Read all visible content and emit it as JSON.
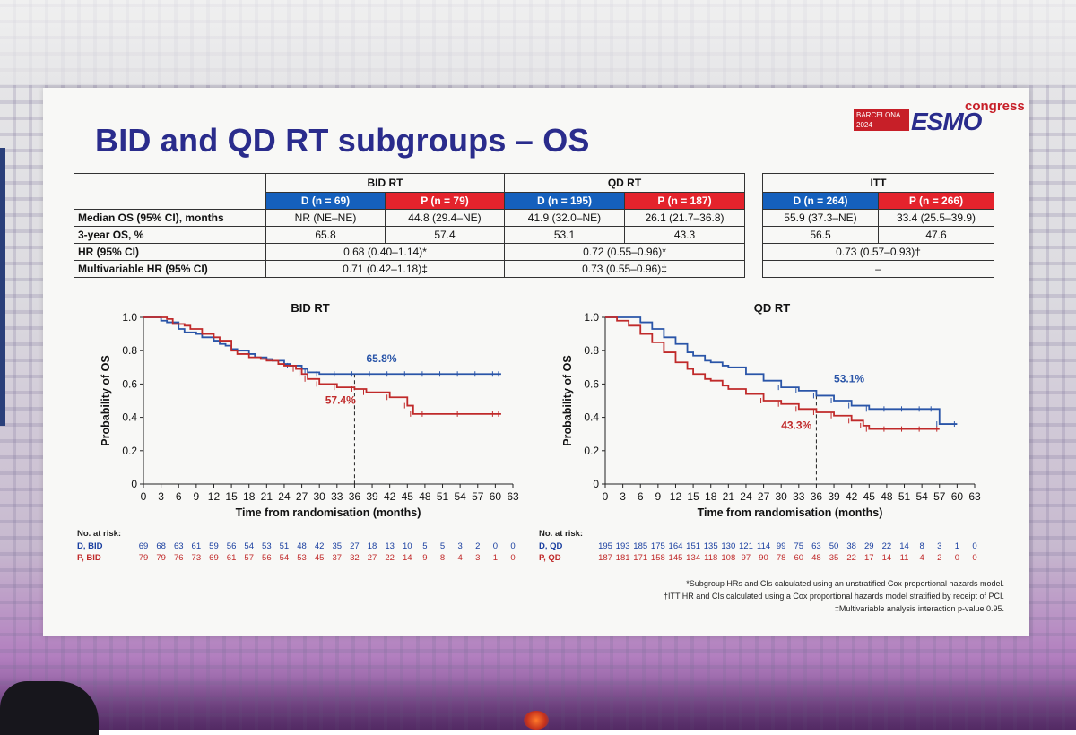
{
  "slide": {
    "title": "BID and QD RT subgroups – OS",
    "logo": {
      "city": "BARCELONA",
      "year": "2024",
      "brand": "ESMO",
      "suffix": "congress"
    }
  },
  "table_main": {
    "groups": [
      "BID RT",
      "QD RT"
    ],
    "arms": [
      "D (n = 69)",
      "P (n = 79)",
      "D (n = 195)",
      "P (n = 187)"
    ],
    "rows": [
      {
        "label": "Median OS (95% CI), months",
        "cells": [
          "NR (NE–NE)",
          "44.8 (29.4–NE)",
          "41.9 (32.0–NE)",
          "26.1 (21.7–36.8)"
        ]
      },
      {
        "label": "3-year OS, %",
        "cells": [
          "65.8",
          "57.4",
          "53.1",
          "43.3"
        ]
      }
    ],
    "hr_rows": [
      {
        "label": "HR (95% CI)",
        "cells": [
          "0.68 (0.40–1.14)*",
          "0.72 (0.55–0.96)*"
        ]
      },
      {
        "label": "Multivariable HR (95% CI)",
        "cells": [
          "0.71 (0.42–1.18)‡",
          "0.73 (0.55–0.96)‡"
        ]
      }
    ]
  },
  "table_itt": {
    "title": "ITT",
    "arms": [
      "D (n = 264)",
      "P (n = 266)"
    ],
    "rows": [
      {
        "cells": [
          "55.9 (37.3–NE)",
          "33.4 (25.5–39.9)"
        ]
      },
      {
        "cells": [
          "56.5",
          "47.6"
        ]
      }
    ],
    "hr_rows": [
      {
        "cell": "0.73 (0.57–0.93)†"
      },
      {
        "cell": "–"
      }
    ]
  },
  "chart_data": [
    {
      "type": "line",
      "title": "BID RT",
      "xlabel": "Time from randomisation (months)",
      "ylabel": "Probability of OS",
      "xlim": [
        0,
        63
      ],
      "ylim": [
        0,
        1.0
      ],
      "x_ticks": [
        0,
        3,
        6,
        9,
        12,
        15,
        18,
        21,
        24,
        27,
        30,
        33,
        36,
        39,
        42,
        45,
        48,
        51,
        54,
        57,
        60,
        63
      ],
      "y_ticks": [
        0,
        0.2,
        0.4,
        0.6,
        0.8,
        1.0
      ],
      "y_tick_labels": [
        "0",
        "0.2",
        "0.4",
        "0.6",
        "0.8",
        "1.0"
      ],
      "reference_x": 36,
      "annotations": [
        {
          "text": "65.8%",
          "series": "D, BID",
          "x": 38,
          "y": 0.73
        },
        {
          "text": "57.4%",
          "series": "P, BID",
          "x": 31,
          "y": 0.48
        }
      ],
      "series": [
        {
          "name": "D, BID",
          "color": "#2a55a8",
          "x": [
            0,
            1,
            3,
            4,
            6,
            7,
            9,
            10,
            12,
            13,
            14,
            15,
            16,
            18,
            19,
            21,
            22,
            24,
            25,
            27,
            28,
            30,
            33,
            36,
            39,
            42,
            45,
            48,
            51,
            54,
            57,
            60,
            61
          ],
          "y": [
            1.0,
            1.0,
            0.98,
            0.97,
            0.93,
            0.91,
            0.9,
            0.88,
            0.86,
            0.84,
            0.83,
            0.81,
            0.8,
            0.78,
            0.76,
            0.75,
            0.74,
            0.72,
            0.71,
            0.69,
            0.67,
            0.66,
            0.66,
            0.66,
            0.66,
            0.66,
            0.66,
            0.66,
            0.66,
            0.66,
            0.66,
            0.66,
            0.66
          ]
        },
        {
          "name": "P, BID",
          "color": "#c02a2a",
          "x": [
            0,
            2,
            4,
            5,
            7,
            8,
            10,
            12,
            13,
            15,
            16,
            18,
            20,
            21,
            23,
            24,
            26,
            27,
            28,
            30,
            33,
            36,
            38,
            42,
            45,
            46,
            48,
            54,
            60,
            61
          ],
          "y": [
            1.0,
            1.0,
            0.99,
            0.96,
            0.95,
            0.93,
            0.9,
            0.88,
            0.86,
            0.8,
            0.78,
            0.76,
            0.75,
            0.74,
            0.72,
            0.71,
            0.69,
            0.66,
            0.63,
            0.6,
            0.58,
            0.57,
            0.55,
            0.52,
            0.47,
            0.42,
            0.42,
            0.42,
            0.42,
            0.42
          ]
        }
      ],
      "risk_table": {
        "header": "No. at risk:",
        "rows": [
          {
            "label": "D, BID",
            "color": "#1a3fa0",
            "values": [
              "69",
              "68",
              "63",
              "61",
              "59",
              "56",
              "54",
              "53",
              "51",
              "48",
              "42",
              "35",
              "27",
              "18",
              "13",
              "10",
              "5",
              "5",
              "3",
              "2",
              "0",
              "0"
            ]
          },
          {
            "label": "P, BID",
            "color": "#c02a2a",
            "values": [
              "79",
              "79",
              "76",
              "73",
              "69",
              "61",
              "57",
              "56",
              "54",
              "53",
              "45",
              "37",
              "32",
              "27",
              "22",
              "14",
              "9",
              "8",
              "4",
              "3",
              "1",
              "0"
            ]
          }
        ]
      }
    },
    {
      "type": "line",
      "title": "QD RT",
      "xlabel": "Time from randomisation (months)",
      "ylabel": "Probability of OS",
      "xlim": [
        0,
        63
      ],
      "ylim": [
        0,
        1.0
      ],
      "x_ticks": [
        0,
        3,
        6,
        9,
        12,
        15,
        18,
        21,
        24,
        27,
        30,
        33,
        36,
        39,
        42,
        45,
        48,
        51,
        54,
        57,
        60,
        63
      ],
      "y_ticks": [
        0,
        0.2,
        0.4,
        0.6,
        0.8,
        1.0
      ],
      "y_tick_labels": [
        "0",
        "0.2",
        "0.4",
        "0.6",
        "0.8",
        "1.0"
      ],
      "reference_x": 36,
      "annotations": [
        {
          "text": "53.1%",
          "series": "D, QD",
          "x": 39,
          "y": 0.61
        },
        {
          "text": "43.3%",
          "series": "P, QD",
          "x": 30,
          "y": 0.33
        }
      ],
      "series": [
        {
          "name": "D, QD",
          "color": "#2a55a8",
          "x": [
            0,
            3,
            6,
            8,
            10,
            12,
            14,
            15,
            17,
            18,
            20,
            21,
            24,
            27,
            30,
            33,
            36,
            39,
            42,
            45,
            48,
            51,
            54,
            56,
            57,
            60
          ],
          "y": [
            1.0,
            1.0,
            0.97,
            0.93,
            0.88,
            0.84,
            0.79,
            0.77,
            0.74,
            0.73,
            0.71,
            0.7,
            0.66,
            0.62,
            0.58,
            0.56,
            0.53,
            0.5,
            0.47,
            0.45,
            0.45,
            0.45,
            0.45,
            0.45,
            0.36,
            0.36
          ]
        },
        {
          "name": "P, QD",
          "color": "#c02a2a",
          "x": [
            0,
            2,
            4,
            6,
            8,
            10,
            12,
            14,
            15,
            17,
            18,
            20,
            21,
            24,
            27,
            30,
            33,
            36,
            39,
            42,
            44,
            45,
            48,
            51,
            54,
            57
          ],
          "y": [
            1.0,
            0.98,
            0.95,
            0.9,
            0.85,
            0.79,
            0.73,
            0.69,
            0.66,
            0.63,
            0.62,
            0.59,
            0.57,
            0.54,
            0.5,
            0.48,
            0.45,
            0.43,
            0.41,
            0.38,
            0.35,
            0.33,
            0.33,
            0.33,
            0.33,
            0.33
          ]
        }
      ],
      "risk_table": {
        "header": "No. at risk:",
        "rows": [
          {
            "label": "D, QD",
            "color": "#1a3fa0",
            "values": [
              "195",
              "193",
              "185",
              "175",
              "164",
              "151",
              "135",
              "130",
              "121",
              "114",
              "99",
              "75",
              "63",
              "50",
              "38",
              "29",
              "22",
              "14",
              "8",
              "3",
              "1",
              "0"
            ]
          },
          {
            "label": "P, QD",
            "color": "#c02a2a",
            "values": [
              "187",
              "181",
              "171",
              "158",
              "145",
              "134",
              "118",
              "108",
              "97",
              "90",
              "78",
              "60",
              "48",
              "35",
              "22",
              "17",
              "14",
              "11",
              "4",
              "2",
              "0",
              "0"
            ]
          }
        ]
      }
    }
  ],
  "footnotes": [
    "*Subgroup HRs and CIs calculated using an unstratified Cox proportional hazards model.",
    "†ITT HR and CIs calculated using a Cox proportional hazards model stratified by receipt of PCI.",
    "‡Multivariable analysis interaction p-value 0.95."
  ]
}
